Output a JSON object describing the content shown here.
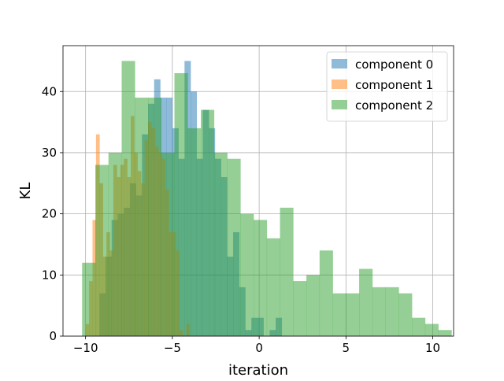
{
  "chart_data": {
    "type": "histogram",
    "title": "",
    "xlabel": "iteration",
    "ylabel": "KL",
    "xlim": [
      -11.3,
      11.2
    ],
    "ylim": [
      0,
      47.5
    ],
    "xticks": [
      -10,
      -5,
      0,
      5,
      10
    ],
    "yticks": [
      0,
      10,
      20,
      30,
      40
    ],
    "grid": true,
    "legend_position": "top-right",
    "series": [
      {
        "name": "component 0",
        "color": "#1f77b4",
        "alpha": 0.5,
        "x_start": -9.2,
        "bin_width": 0.35,
        "counts": [
          7,
          13,
          19,
          20,
          21,
          25,
          23,
          33,
          38,
          42,
          39,
          39,
          34,
          29,
          45,
          40,
          29,
          37,
          34,
          29,
          26,
          13,
          17,
          8,
          1,
          3,
          3,
          0,
          1,
          3
        ]
      },
      {
        "name": "component 1",
        "color": "#ff7f0e",
        "alpha": 0.5,
        "x_start": -10.0,
        "bin_width": 0.2,
        "counts": [
          2,
          9,
          19,
          33,
          25,
          13,
          17,
          14,
          28,
          26,
          28,
          29,
          26,
          36,
          30,
          27,
          25,
          32,
          35,
          34,
          31,
          30,
          29,
          24,
          17,
          17,
          14,
          1,
          0,
          2
        ]
      },
      {
        "name": "component 2",
        "color": "#2ca02c",
        "alpha": 0.5,
        "x_start": -10.2,
        "bin_width": 0.76,
        "counts": [
          12,
          28,
          30,
          45,
          39,
          39,
          30,
          43,
          34,
          37,
          30,
          29,
          20,
          19,
          16,
          21,
          9,
          10,
          14,
          7,
          7,
          11,
          8,
          8,
          7,
          3,
          2,
          1
        ]
      }
    ]
  }
}
